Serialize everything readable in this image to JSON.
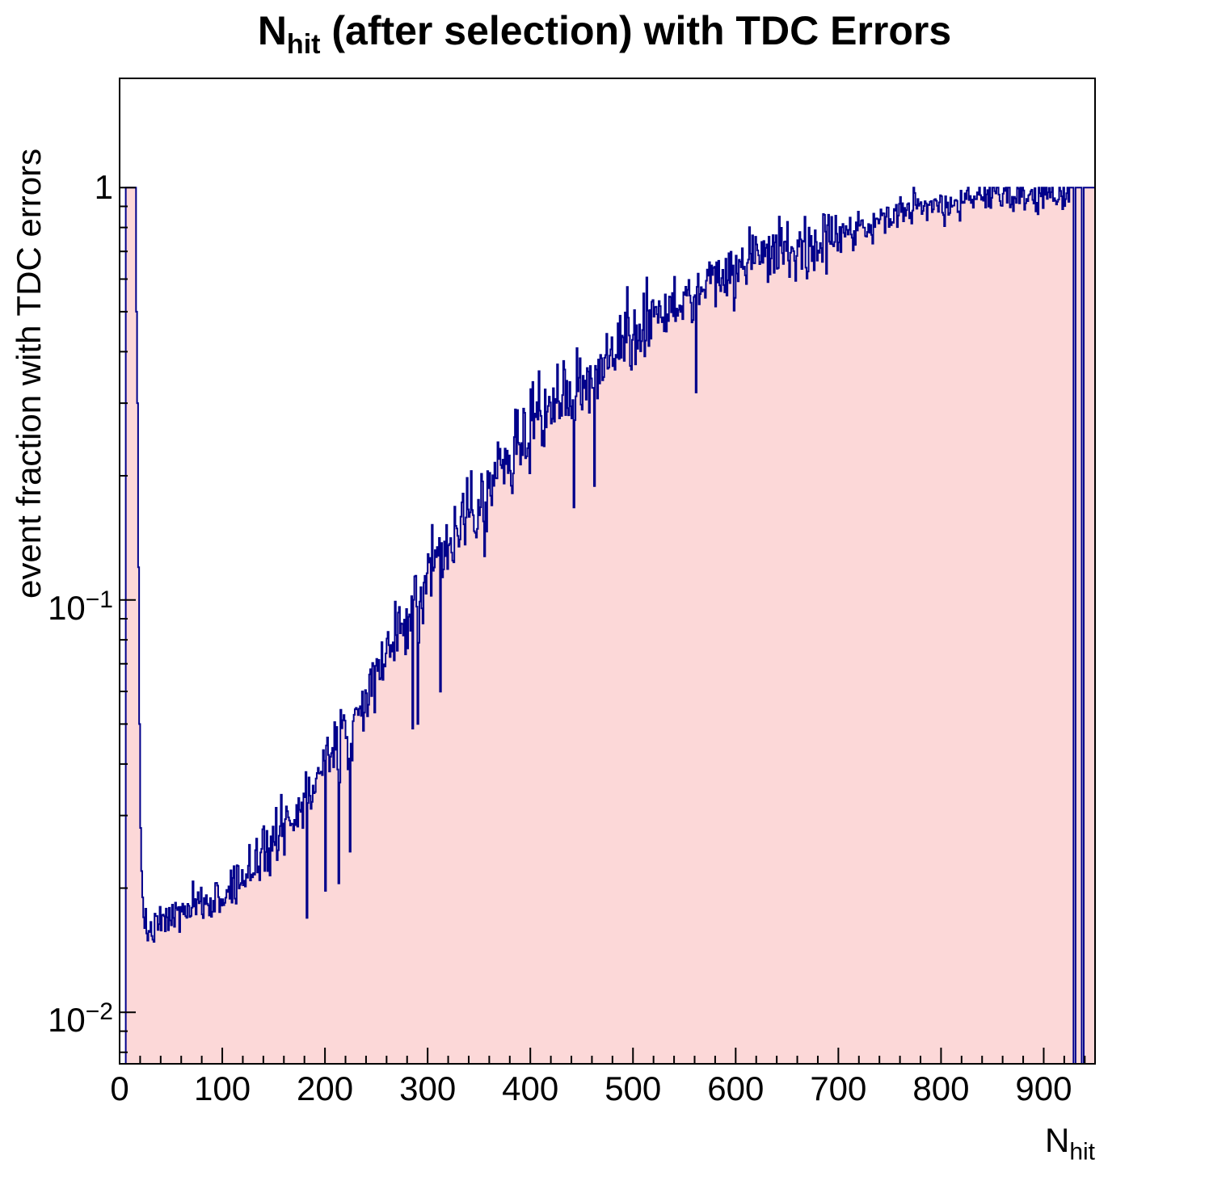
{
  "title": {
    "prefix": "N",
    "sub": "hit",
    "rest": " (after selection) with TDC Errors"
  },
  "y_axis": {
    "label": "event fraction with TDC errors",
    "scale": "log",
    "min": 0.0075,
    "max": 1.84,
    "ticks": [
      {
        "label": "1",
        "value": 1
      },
      {
        "base": "10",
        "exp": "−1",
        "value": 0.1
      },
      {
        "base": "10",
        "exp": "−2",
        "value": 0.01
      }
    ]
  },
  "x_axis": {
    "label_prefix": "N",
    "label_sub": "hit",
    "min": 0,
    "max": 950,
    "major_tick_step": 100,
    "minor_tick_step": 20,
    "tick_labels": [
      "0",
      "100",
      "200",
      "300",
      "400",
      "500",
      "600",
      "700",
      "800",
      "900"
    ]
  },
  "style": {
    "line_color": "#00008b",
    "fill_color": "#fcd8d8",
    "frame_color": "#000000",
    "background": "#ffffff"
  },
  "chart_data": {
    "type": "area",
    "subtype": "histogram-step",
    "title": "N_hit (after selection) with TDC Errors",
    "xlabel": "N_hit",
    "ylabel": "event fraction with TDC errors",
    "xlim": [
      0,
      950
    ],
    "ylim": [
      0.0075,
      1.84
    ],
    "yscale": "log",
    "bin_width": 1,
    "left_empty_bins": [
      0,
      5
    ],
    "spike": {
      "x_range": [
        6,
        15
      ],
      "value": 1.0
    },
    "falloff_bins": {
      "x_start": 16,
      "values": [
        0.5,
        0.3,
        0.12,
        0.05,
        0.028,
        0.022,
        0.019,
        0.017,
        0.016
      ]
    },
    "trend_points": {
      "x": [
        25,
        50,
        75,
        100,
        125,
        150,
        175,
        200,
        225,
        250,
        275,
        300,
        325,
        350,
        375,
        400,
        425,
        450,
        475,
        500,
        525,
        550,
        575,
        600,
        625,
        650,
        675,
        700,
        725,
        750,
        775,
        800,
        825,
        850,
        875,
        900,
        915,
        925
      ],
      "y": [
        0.0155,
        0.017,
        0.018,
        0.019,
        0.022,
        0.026,
        0.031,
        0.04,
        0.05,
        0.065,
        0.085,
        0.115,
        0.145,
        0.175,
        0.21,
        0.26,
        0.3,
        0.34,
        0.38,
        0.43,
        0.48,
        0.54,
        0.58,
        0.62,
        0.68,
        0.71,
        0.73,
        0.76,
        0.81,
        0.86,
        0.9,
        0.9,
        0.93,
        0.94,
        0.95,
        0.95,
        0.97,
        0.99
      ],
      "max_value": 1.0
    },
    "right_full_bins": {
      "x_range": [
        926,
        950
      ],
      "value": 1.0
    },
    "right_empty_bins": [
      [
        929,
        931
      ],
      [
        937,
        939
      ]
    ],
    "noise": {
      "seed": 7,
      "segments": [
        {
          "x_max": 100,
          "sigma": 0.05
        },
        {
          "x_max": 200,
          "sigma": 0.08
        },
        {
          "x_max": 500,
          "sigma": 0.11
        },
        {
          "x_max": 700,
          "sigma": 0.08
        },
        {
          "x_max": 951,
          "sigma": 0.05
        }
      ],
      "downspike": {
        "probability": 0.02,
        "factor": 0.5,
        "x_range": [
          120,
          650
        ]
      }
    }
  }
}
